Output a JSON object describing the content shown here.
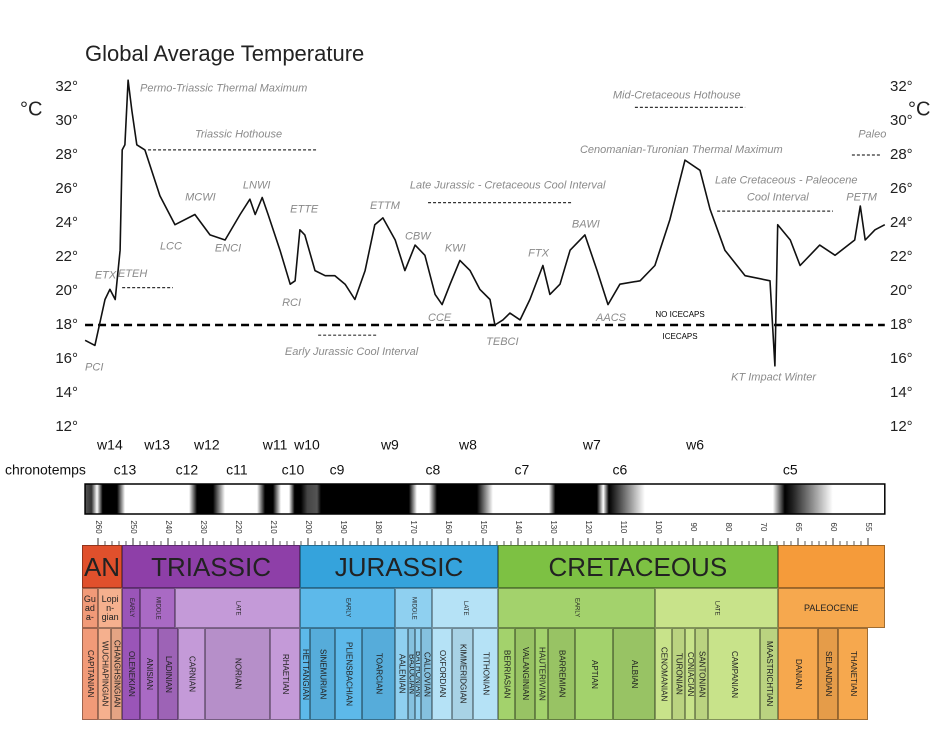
{
  "chart_data": {
    "type": "line",
    "title": "Global Average Temperature",
    "y_label": "°C",
    "y2_label": "°C",
    "x": [
      263.7,
      260.9,
      258,
      256.6,
      255.1,
      253.7,
      253.1,
      252.3,
      251.4,
      250.3,
      248.9,
      246.6,
      242.3,
      238,
      232.3,
      228,
      223.7,
      219.4,
      216.6,
      215.1,
      213.1,
      211.4,
      208,
      205.1,
      203.7,
      202.3,
      200.9,
      198,
      195.1,
      192.3,
      189.4,
      186.6,
      183.7,
      180.9,
      178.6,
      175.1,
      172.3,
      169.4,
      166.6,
      163.7,
      161.7,
      159.4,
      156.6,
      153.7,
      150.9,
      148,
      146.6,
      144.3,
      142.3,
      139.4,
      136.6,
      132.9,
      130.9,
      128,
      125.1,
      120.9,
      117.4,
      114.3,
      110.9,
      105.1,
      100.9,
      96.6,
      92.3,
      88,
      85.1,
      80.9,
      75.1,
      69,
      68.3,
      67.9,
      66.1,
      64.7,
      61.9,
      59.7,
      56.9,
      56.1,
      55.4,
      54,
      52.6
    ],
    "values": [
      17.1,
      16.8,
      19.5,
      20.1,
      19.5,
      22.4,
      28.3,
      28.6,
      32.4,
      30.6,
      28.6,
      28.3,
      25.6,
      23.9,
      24.5,
      23.3,
      23.0,
      24.5,
      25.4,
      24.5,
      25.5,
      24.5,
      22.4,
      20.4,
      20.6,
      23.6,
      23.3,
      21.2,
      20.9,
      20.9,
      20.4,
      19.5,
      21.2,
      23.9,
      24.3,
      23.0,
      21.2,
      22.7,
      22.1,
      19.8,
      19.2,
      20.4,
      21.8,
      21.2,
      20.1,
      19.5,
      18.0,
      18.3,
      18.7,
      18.3,
      19.5,
      21.5,
      19.8,
      20.4,
      22.4,
      23.3,
      21.2,
      19.2,
      20.4,
      20.6,
      21.5,
      24.2,
      27.7,
      27.1,
      24.8,
      22.4,
      20.9,
      20.6,
      15.6,
      23.9,
      23.0,
      21.5,
      22.7,
      22.1,
      23.0,
      25.0,
      23.0,
      23.6,
      23.9
    ],
    "color": "#111",
    "xlim": [
      263.7,
      52.6
    ],
    "ylim": [
      11,
      33
    ],
    "y2lim": [
      11,
      33
    ],
    "yticks": [
      {
        "value": 12,
        "label": "12°"
      },
      {
        "value": 14,
        "label": "14°"
      },
      {
        "value": 16,
        "label": "16°"
      },
      {
        "value": 18,
        "label": "18°"
      },
      {
        "value": 20,
        "label": "20°"
      },
      {
        "value": 22,
        "label": "22°"
      },
      {
        "value": 24,
        "label": "24°"
      },
      {
        "value": 26,
        "label": "26°"
      },
      {
        "value": 28,
        "label": "28°"
      },
      {
        "value": 30,
        "label": "30°"
      },
      {
        "value": 32,
        "label": "32°"
      }
    ],
    "y2ticks": [
      {
        "value": 12,
        "label": "12°"
      },
      {
        "value": 14,
        "label": "14°"
      },
      {
        "value": 16,
        "label": "16°"
      },
      {
        "value": 18,
        "label": "18°"
      },
      {
        "value": 20,
        "label": "20°"
      },
      {
        "value": 22,
        "label": "22°"
      },
      {
        "value": 24,
        "label": "24°"
      },
      {
        "value": 26,
        "label": "26°"
      },
      {
        "value": 28,
        "label": "28°"
      },
      {
        "value": 30,
        "label": "30°"
      },
      {
        "value": 32,
        "label": "32°"
      }
    ],
    "xticks": [
      260,
      250,
      240,
      230,
      220,
      210,
      200,
      190,
      180,
      170,
      160,
      150,
      140,
      130,
      120,
      110,
      100,
      90,
      80,
      70,
      65,
      60,
      55
    ],
    "threshold": {
      "value": 18,
      "above_label": "NO ICECAPS",
      "below_label": "ICECAPS",
      "x": 93.7
    },
    "annotations": [
      {
        "text": "Permo-Triassic Thermal Maximum",
        "x": 248,
        "y": 31.9
      },
      {
        "text": "ETX",
        "x": 260.9,
        "y": 20.9
      },
      {
        "text": "ETEH",
        "x": 254.3,
        "y": 21.0
      },
      {
        "text": "Triassic Hothouse",
        "x": 232.3,
        "y": 29.2
      },
      {
        "text": "MCWI",
        "x": 235.1,
        "y": 25.5
      },
      {
        "text": "LCC",
        "x": 242.3,
        "y": 22.6
      },
      {
        "text": "LNWI",
        "x": 218.6,
        "y": 26.2
      },
      {
        "text": "ENCI",
        "x": 226.6,
        "y": 22.5
      },
      {
        "text": "ETTE",
        "x": 205.1,
        "y": 24.8
      },
      {
        "text": "RCI",
        "x": 207.4,
        "y": 19.3
      },
      {
        "text": "ETTM",
        "x": 182.3,
        "y": 25.0
      },
      {
        "text": "CBW",
        "x": 172.3,
        "y": 23.2
      },
      {
        "text": "KWI",
        "x": 160.9,
        "y": 22.5
      },
      {
        "text": "CCE",
        "x": 165.7,
        "y": 18.4
      },
      {
        "text": "Early Jurassic Cool Interval",
        "x": 206.6,
        "y": 16.4
      },
      {
        "text": "Late Jurassic - Cretaceous Cool Interval",
        "x": 170.9,
        "y": 26.2
      },
      {
        "text": "TEBCI",
        "x": 149.1,
        "y": 17.0
      },
      {
        "text": "FTX",
        "x": 137.1,
        "y": 22.2
      },
      {
        "text": "BAWI",
        "x": 124.6,
        "y": 23.9
      },
      {
        "text": "AACS",
        "x": 117.7,
        "y": 18.4
      },
      {
        "text": "Mid-Cretaceous  Hothouse",
        "x": 112.9,
        "y": 31.5
      },
      {
        "text": "Cenomanian-Turonian Thermal Maximum",
        "x": 122.3,
        "y": 28.3
      },
      {
        "text": "Late Cretaceous - Paleocene",
        "x": 83.7,
        "y": 26.5
      },
      {
        "text": "Cool Interval",
        "x": 74.6,
        "y": 25.5
      },
      {
        "text": "KT Impact Winter",
        "x": 79.1,
        "y": 14.9
      },
      {
        "text": "PETM",
        "x": 58.1,
        "y": 25.5
      },
      {
        "text": "Paleo",
        "x": 56.4,
        "y": 29.2
      },
      {
        "text": "PCI",
        "x": 263.7,
        "y": 15.5
      }
    ],
    "intervals": [
      {
        "x": [
          253.1,
          238.6
        ],
        "y": 20.2
      },
      {
        "x": [
          245.7,
          197.7
        ],
        "y": 28.3
      },
      {
        "x": [
          197.1,
          180
        ],
        "y": 17.4
      },
      {
        "x": [
          165.7,
          124.3
        ],
        "y": 25.2
      },
      {
        "x": [
          106.6,
          75.1
        ],
        "y": 30.8
      },
      {
        "x": [
          83.1,
          60
        ],
        "y": 24.7
      },
      {
        "x": [
          57.3,
          53.3
        ],
        "y": 28
      }
    ],
    "warm_intervals": [
      {
        "label": "w14",
        "x": 256.6
      },
      {
        "label": "w13",
        "x": 243.1
      },
      {
        "label": "w12",
        "x": 228.9
      },
      {
        "label": "w11",
        "x": 209.4
      },
      {
        "label": "w10",
        "x": 200.3
      },
      {
        "label": "w9",
        "x": 176.6
      },
      {
        "label": "w8",
        "x": 154.3
      },
      {
        "label": "w7",
        "x": 118.9
      },
      {
        "label": "w6",
        "x": 89.4
      }
    ],
    "chronotemps_label": "chronotemps",
    "chronotemps": [
      {
        "label": "c13",
        "x": 252.3
      },
      {
        "label": "c12",
        "x": 234.6
      },
      {
        "label": "c11",
        "x": 220.3
      },
      {
        "label": "c10",
        "x": 204.3
      },
      {
        "label": "c9",
        "x": 191.7
      },
      {
        "label": "c8",
        "x": 164.3
      },
      {
        "label": "c7",
        "x": 138.9
      },
      {
        "label": "c6",
        "x": 110.9
      },
      {
        "label": "c5",
        "x": 66.1
      }
    ],
    "timescale": {
      "periods": [
        {
          "name": "AN",
          "from": 264.6,
          "to": 253.1,
          "color": "#e0502c"
        },
        {
          "name": "TRIASSIC",
          "from": 253.1,
          "to": 202.3,
          "color": "#8e3fa8"
        },
        {
          "name": "JURASSIC",
          "from": 202.3,
          "to": 145.7,
          "color": "#35a3dc"
        },
        {
          "name": "CRETACEOUS",
          "from": 145.7,
          "to": 67.9,
          "color": "#7dc143"
        },
        {
          "from": 67.9,
          "to": 52.6,
          "color": "#f59b3a"
        }
      ],
      "epochs": [
        {
          "name": "Guada-",
          "from": 264.6,
          "to": 260,
          "color": "#f19a78",
          "stages": [
            {
              "name": "CAPITANIAN",
              "from": 264.6,
              "to": 260
            }
          ]
        },
        {
          "name": "Lopin-gian",
          "from": 260,
          "to": 253.1,
          "color": "#f5b08e",
          "stages": [
            {
              "name": "WUCHIAPINGIAN",
              "from": 260,
              "to": 256.3
            },
            {
              "name": "CHANGHSINGIAN",
              "from": 256.3,
              "to": 253.1
            }
          ]
        },
        {
          "name": "EARLY",
          "vertical": true,
          "from": 253.1,
          "to": 248,
          "color": "#9a55b8",
          "stages": [
            {
              "name": "OLENEKIAN",
              "from": 253.1,
              "to": 248
            }
          ]
        },
        {
          "name": "MIDDLE",
          "vertical": true,
          "from": 248,
          "to": 238,
          "color": "#a96ac4",
          "stages": [
            {
              "name": "ANISIAN",
              "from": 248,
              "to": 242.9
            },
            {
              "name": "LADINIAN",
              "from": 242.9,
              "to": 237.1
            }
          ]
        },
        {
          "name": "LATE",
          "vertical": true,
          "from": 238,
          "to": 202.3,
          "color": "#c49ad8",
          "stages": [
            {
              "name": "CARNIAN",
              "from": 237.1,
              "to": 229.4
            },
            {
              "name": "NORIAN",
              "from": 229.4,
              "to": 210.9
            },
            {
              "name": "RHAETIAN",
              "from": 210.9,
              "to": 202.3
            }
          ]
        },
        {
          "name": "EARLY",
          "vertical": true,
          "from": 202.3,
          "to": 175.1,
          "color": "#5db9ea",
          "stages": [
            {
              "name": "HETTANGIAN",
              "from": 202.3,
              "to": 199.4
            },
            {
              "name": "SINEMURIAN",
              "from": 199.4,
              "to": 192.3
            },
            {
              "name": "PLIENSBACHIAN",
              "from": 192.3,
              "to": 184.6
            },
            {
              "name": "TOARCIAN",
              "from": 184.6,
              "to": 175.1
            }
          ]
        },
        {
          "name": "MIDDLE",
          "vertical": true,
          "from": 175.1,
          "to": 164.6,
          "color": "#8fd0f0",
          "stages": [
            {
              "name": "AALENIAN",
              "from": 175.1,
              "to": 171.4
            },
            {
              "name": "BAJOCIAN",
              "from": 171.4,
              "to": 169.4
            },
            {
              "name": "BATHONIAN",
              "from": 169.4,
              "to": 167.7
            },
            {
              "name": "CALLOVIAN",
              "from": 167.7,
              "to": 164.6
            }
          ]
        },
        {
          "name": "LATE",
          "vertical": true,
          "from": 164.6,
          "to": 145.7,
          "color": "#b5e2f6",
          "stages": [
            {
              "name": "OXFORDIAN",
              "from": 164.6,
              "to": 158.9
            },
            {
              "name": "KIMMERIDGIAN",
              "from": 158.9,
              "to": 152.9
            },
            {
              "name": "TITHONIAN",
              "from": 152.9,
              "to": 145.7
            }
          ]
        },
        {
          "name": "EARLY",
          "vertical": true,
          "from": 145.7,
          "to": 100.9,
          "color": "#a3d26c",
          "stages": [
            {
              "name": "BERRIASIAN",
              "from": 145.7,
              "to": 140.9
            },
            {
              "name": "VALANGINIAN",
              "from": 140.9,
              "to": 135.1
            },
            {
              "name": "HAUTERIVIAN",
              "from": 135.1,
              "to": 131.4
            },
            {
              "name": "BARREMIAN",
              "from": 131.4,
              "to": 123.7
            },
            {
              "name": "APTIAN",
              "from": 123.7,
              "to": 112.9
            },
            {
              "name": "ALBIAN",
              "from": 112.9,
              "to": 100.9
            }
          ]
        },
        {
          "name": "LATE",
          "vertical": true,
          "from": 100.9,
          "to": 67.9,
          "color": "#c8e38a",
          "stages": [
            {
              "name": "CENOMANIAN",
              "from": 100.9,
              "to": 96
            },
            {
              "name": "TURONIAN",
              "from": 96,
              "to": 92.3
            },
            {
              "name": "CONIACIAN",
              "from": 92.3,
              "to": 89.4
            },
            {
              "name": "SANTONIAN",
              "from": 89.4,
              "to": 85.7
            },
            {
              "name": "CAMPANIAN",
              "from": 85.7,
              "to": 70.9
            },
            {
              "name": "MAASTRICHTIAN",
              "from": 70.9,
              "to": 67.9
            }
          ]
        },
        {
          "name": "PALEOCENE",
          "from": 67.9,
          "to": 52.6,
          "color": "#f6a84e",
          "stages": [
            {
              "name": "DANIAN",
              "from": 67.9,
              "to": 62.1
            },
            {
              "name": "SELANDIAN",
              "from": 62.1,
              "to": 59.3
            },
            {
              "name": "THANETIAN",
              "from": 59.3,
              "to": 55
            }
          ]
        }
      ]
    }
  }
}
